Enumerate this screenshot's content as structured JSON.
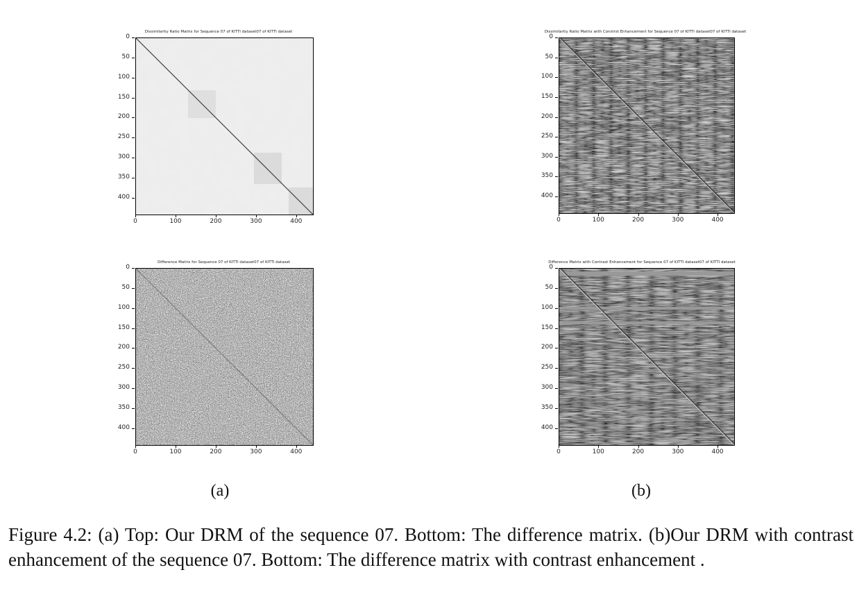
{
  "figure": {
    "panels": [
      {
        "id": "a-top",
        "title": "Dissimilartiy Ratio Matrix for Sequence 07 of KITTI dataset07 of KITTI dataset",
        "style": "light",
        "y_ticks": [
          "0",
          "50",
          "100",
          "150",
          "200",
          "250",
          "300",
          "350",
          "400"
        ],
        "x_ticks": [
          "0",
          "100",
          "200",
          "300",
          "400"
        ],
        "extent": 440
      },
      {
        "id": "b-top",
        "title": "Dissimilartiy Ratio Matrix with Constrst Enhancement for Sequence 07 of KITTI dataset07 of KITTI dataset",
        "style": "textured",
        "y_ticks": [
          "0",
          "50",
          "100",
          "150",
          "200",
          "250",
          "300",
          "350",
          "400"
        ],
        "x_ticks": [
          "0",
          "100",
          "200",
          "300",
          "400"
        ],
        "extent": 440
      },
      {
        "id": "a-bottom",
        "title": "Difference Matrix for Sequence 07 of KITTI dataset07 of KITTI dataset",
        "style": "noise",
        "y_ticks": [
          "0",
          "50",
          "100",
          "150",
          "200",
          "250",
          "300",
          "350",
          "400"
        ],
        "x_ticks": [
          "0",
          "100",
          "200",
          "300",
          "400"
        ],
        "extent": 440
      },
      {
        "id": "b-bottom",
        "title": "Difference Matrix with Contrast Enhancement for Sequence 07 of KITTI dataset07 of KITTI dataset",
        "style": "textured-bands",
        "y_ticks": [
          "0",
          "50",
          "100",
          "150",
          "200",
          "250",
          "300",
          "350",
          "400"
        ],
        "x_ticks": [
          "0",
          "100",
          "200",
          "300",
          "400"
        ],
        "extent": 440
      }
    ],
    "sub_labels": {
      "a": "(a)",
      "b": "(b)"
    },
    "caption": "Figure 4.2:  (a) Top: Our DRM of the sequence 07. Bottom: The difference matrix. (b)Our DRM with contrast enhancement of the sequence 07. Bottom: The difference matrix with contrast enhancement ."
  }
}
